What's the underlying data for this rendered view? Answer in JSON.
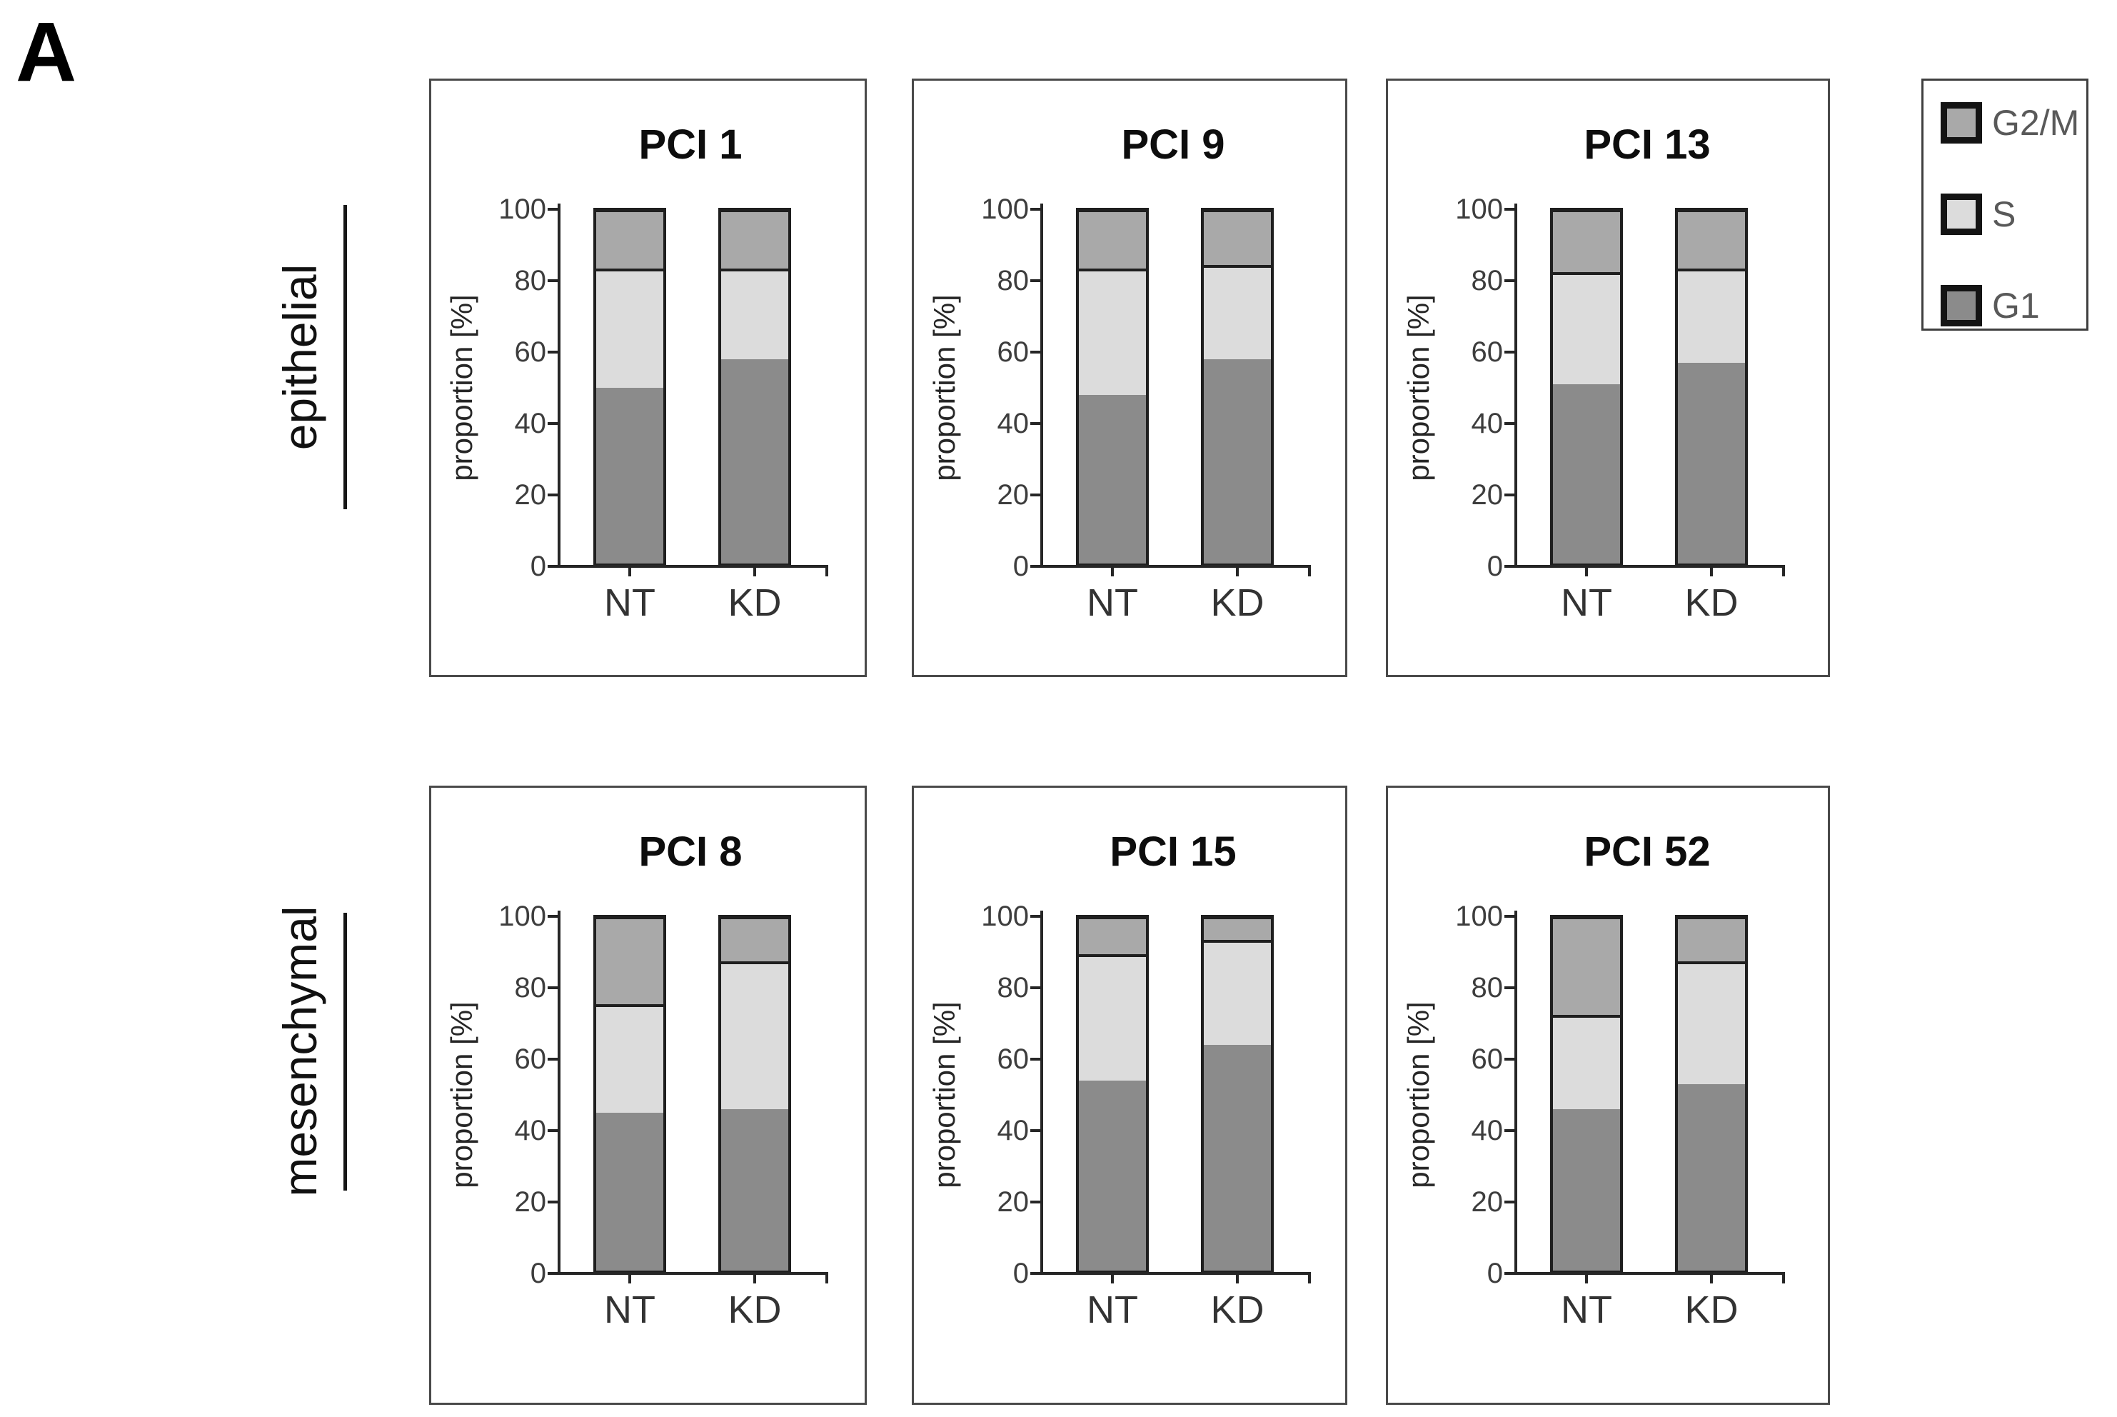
{
  "figure": {
    "panel_label": "A"
  },
  "rows": [
    {
      "label": "epithelial"
    },
    {
      "label": "mesenchymal"
    }
  ],
  "axis": {
    "ylabel": "proportion [%]",
    "yticks": [
      0,
      20,
      40,
      60,
      80,
      100
    ],
    "ylim": [
      0,
      100
    ]
  },
  "legend": {
    "items": [
      {
        "label": "G2/M",
        "color": "#a9a9a9"
      },
      {
        "label": "S",
        "color": "#dcdcdc"
      },
      {
        "label": "G1",
        "color": "#8b8b8b"
      }
    ]
  },
  "colors": {
    "G1": "#8b8b8b",
    "S": "#dcdcdc",
    "G2/M": "#a9a9a9"
  },
  "chart_data": [
    {
      "type": "bar",
      "stacked": true,
      "title": "PCI 1",
      "group": "epithelial",
      "categories": [
        "NT",
        "KD"
      ],
      "ylabel": "proportion [%]",
      "ylim": [
        0,
        100
      ],
      "grid": false,
      "series": [
        {
          "name": "G1",
          "values": [
            50,
            58
          ]
        },
        {
          "name": "S",
          "values": [
            33,
            25
          ]
        },
        {
          "name": "G2/M",
          "values": [
            17,
            17
          ]
        }
      ]
    },
    {
      "type": "bar",
      "stacked": true,
      "title": "PCI 9",
      "group": "epithelial",
      "categories": [
        "NT",
        "KD"
      ],
      "ylabel": "proportion [%]",
      "ylim": [
        0,
        100
      ],
      "grid": false,
      "series": [
        {
          "name": "G1",
          "values": [
            48,
            58
          ]
        },
        {
          "name": "S",
          "values": [
            35,
            26
          ]
        },
        {
          "name": "G2/M",
          "values": [
            17,
            16
          ]
        }
      ]
    },
    {
      "type": "bar",
      "stacked": true,
      "title": "PCI 13",
      "group": "epithelial",
      "categories": [
        "NT",
        "KD"
      ],
      "ylabel": "proportion [%]",
      "ylim": [
        0,
        100
      ],
      "grid": false,
      "series": [
        {
          "name": "G1",
          "values": [
            51,
            57
          ]
        },
        {
          "name": "S",
          "values": [
            31,
            26
          ]
        },
        {
          "name": "G2/M",
          "values": [
            18,
            17
          ]
        }
      ]
    },
    {
      "type": "bar",
      "stacked": true,
      "title": "PCI 8",
      "group": "mesenchymal",
      "categories": [
        "NT",
        "KD"
      ],
      "ylabel": "proportion [%]",
      "ylim": [
        0,
        100
      ],
      "grid": false,
      "series": [
        {
          "name": "G1",
          "values": [
            45,
            46
          ]
        },
        {
          "name": "S",
          "values": [
            30,
            41
          ]
        },
        {
          "name": "G2/M",
          "values": [
            25,
            13
          ]
        }
      ]
    },
    {
      "type": "bar",
      "stacked": true,
      "title": "PCI 15",
      "group": "mesenchymal",
      "categories": [
        "NT",
        "KD"
      ],
      "ylabel": "proportion [%]",
      "ylim": [
        0,
        100
      ],
      "grid": false,
      "series": [
        {
          "name": "G1",
          "values": [
            54,
            64
          ]
        },
        {
          "name": "S",
          "values": [
            35,
            29
          ]
        },
        {
          "name": "G2/M",
          "values": [
            11,
            7
          ]
        }
      ]
    },
    {
      "type": "bar",
      "stacked": true,
      "title": "PCI 52",
      "group": "mesenchymal",
      "categories": [
        "NT",
        "KD"
      ],
      "ylabel": "proportion [%]",
      "ylim": [
        0,
        100
      ],
      "grid": false,
      "series": [
        {
          "name": "G1",
          "values": [
            46,
            53
          ]
        },
        {
          "name": "S",
          "values": [
            26,
            34
          ]
        },
        {
          "name": "G2/M",
          "values": [
            28,
            13
          ]
        }
      ]
    }
  ]
}
